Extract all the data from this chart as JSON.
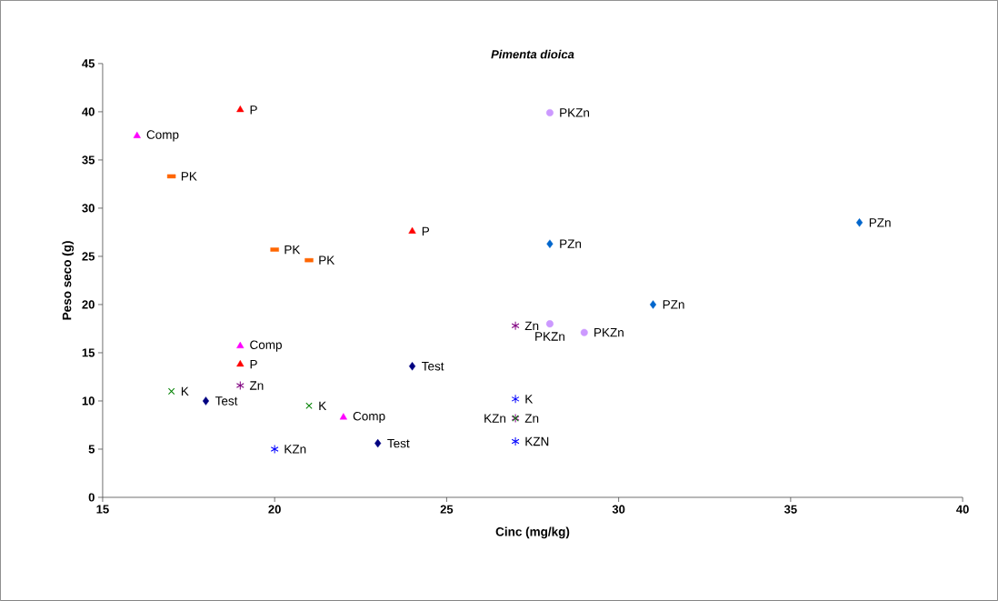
{
  "chart_data": {
    "type": "scatter",
    "title": "Pimenta dioica",
    "xlabel": "Cinc (mg/kg)",
    "ylabel": "Peso seco (g)",
    "xlim": [
      15,
      40
    ],
    "ylim": [
      0,
      45
    ],
    "xticks": [
      15,
      20,
      25,
      30,
      35,
      40
    ],
    "yticks": [
      0,
      5,
      10,
      15,
      20,
      25,
      30,
      35,
      40,
      45
    ],
    "series": [
      {
        "color": "#ff00ff",
        "marker": "triangle",
        "x": [
          16,
          19,
          22
        ],
        "values": [
          37.5,
          15.7,
          8.3
        ],
        "value_labels": [
          "Comp",
          "Comp",
          "Comp"
        ]
      },
      {
        "color": "#ff0000",
        "marker": "triangle",
        "x": [
          19,
          24,
          19
        ],
        "values": [
          40.2,
          27.6,
          13.8
        ],
        "value_labels": [
          "P",
          "P",
          "P"
        ]
      },
      {
        "color": "#ff6600",
        "marker": "square",
        "x": [
          17,
          20,
          21
        ],
        "values": [
          33.3,
          25.7,
          24.6
        ],
        "value_labels": [
          "PK",
          "PK",
          "PK"
        ]
      },
      {
        "color": "#cc99ff",
        "marker": "circle",
        "x": [
          28,
          28,
          29
        ],
        "values": [
          39.9,
          18.0,
          17.1
        ],
        "value_labels": [
          "PKZn",
          "PKZn",
          "PKZn"
        ]
      },
      {
        "color": "#0066cc",
        "marker": "diamond",
        "x": [
          37,
          28,
          31
        ],
        "values": [
          28.5,
          26.3,
          20.0
        ],
        "value_labels": [
          "PZn",
          "PZn",
          "PZn"
        ]
      },
      {
        "color": "#000080",
        "marker": "diamond",
        "x": [
          18,
          24,
          23
        ],
        "values": [
          10.0,
          13.6,
          5.6
        ],
        "value_labels": [
          "Test",
          "Test",
          "Test"
        ]
      },
      {
        "color": "#800080",
        "x": [
          19,
          27,
          27
        ],
        "values": [
          11.6,
          17.8,
          8.2
        ],
        "value_labels": [
          "Zn",
          "Zn",
          "Zn"
        ]
      },
      {
        "color": "#008000",
        "marker": "cross",
        "x": [
          17,
          21,
          27
        ],
        "values": [
          11.0,
          9.5,
          8.2
        ],
        "value_labels": [
          "K",
          "K",
          "KZn"
        ]
      },
      {
        "color": "#0000ff",
        "x": [
          20,
          27,
          27
        ],
        "values": [
          5.0,
          10.2,
          5.8
        ],
        "value_labels": [
          "KZn",
          "K",
          "KZN"
        ]
      }
    ]
  }
}
